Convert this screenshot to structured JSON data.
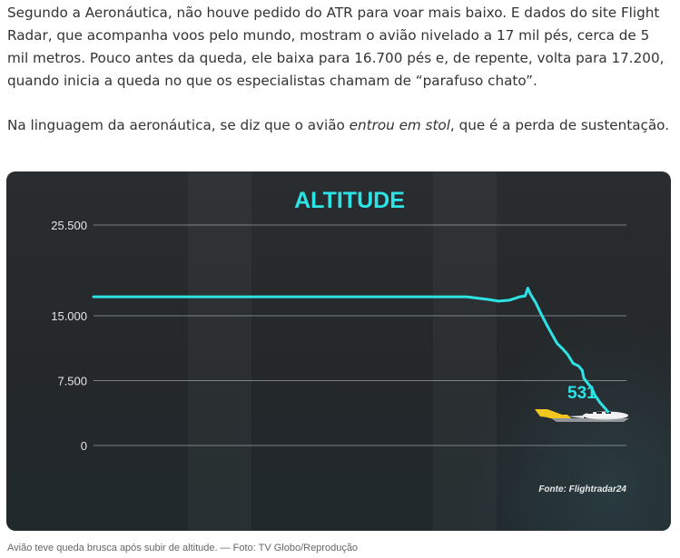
{
  "article": {
    "paragraph1": "Segundo a Aeronáutica, não houve pedido do ATR para voar mais baixo. E dados do site Flight Radar, que acompanha voos pelo mundo, mostram o avião nivelado a 17 mil pés, cerca de 5 mil metros. Pouco antes da queda, ele baixa para 16.700 pés e, de repente, volta para 17.200, quando inicia a queda no que os especialistas chamam de “parafuso chato”.",
    "paragraph2_before": "Na linguagem da aeronáutica, se diz que o avião ",
    "paragraph2_em": "entrou em stol",
    "paragraph2_after": ", que é a perda de sustentação."
  },
  "caption": "Avião teve queda brusca após subir de altitude. — Foto: TV Globo/Reprodução",
  "chart_data": {
    "type": "line",
    "title": "ALTITUDE",
    "source": "Fonte: Flightradar24",
    "annotation": "531",
    "yticks": [
      {
        "value": 0,
        "label": "0"
      },
      {
        "value": 7500,
        "label": "7.500"
      },
      {
        "value": 15000,
        "label": "15.000"
      },
      {
        "value": 25500,
        "label": "25.500"
      }
    ],
    "ylim": [
      0,
      25500
    ],
    "xlim": [
      0,
      100
    ],
    "grid": true,
    "line_color": "#2de3e6",
    "title_color": "#2de3e6",
    "x": [
      0,
      70,
      74,
      76,
      78,
      80,
      81,
      81.5,
      82,
      83,
      84,
      85,
      86,
      87,
      88,
      89,
      90,
      91,
      91.7,
      92,
      93,
      93.5,
      94,
      95,
      96,
      96.5
    ],
    "y": [
      17200,
      17200,
      16900,
      16700,
      16800,
      17200,
      17300,
      18200,
      17500,
      16500,
      15200,
      14000,
      12900,
      11800,
      11200,
      10500,
      9500,
      9200,
      8700,
      7800,
      7000,
      6700,
      5900,
      5000,
      4300,
      3900
    ]
  }
}
